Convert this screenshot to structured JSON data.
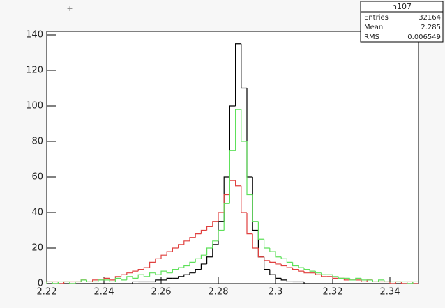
{
  "chart_data": {
    "type": "histogram",
    "bins": [
      2.22,
      2.222,
      2.224,
      2.226,
      2.228,
      2.23,
      2.232,
      2.234,
      2.236,
      2.238,
      2.24,
      2.242,
      2.244,
      2.246,
      2.248,
      2.25,
      2.252,
      2.254,
      2.256,
      2.258,
      2.26,
      2.262,
      2.264,
      2.266,
      2.268,
      2.27,
      2.272,
      2.274,
      2.276,
      2.278,
      2.28,
      2.282,
      2.284,
      2.286,
      2.288,
      2.29,
      2.292,
      2.294,
      2.296,
      2.298,
      2.3,
      2.302,
      2.304,
      2.306,
      2.308,
      2.31,
      2.312,
      2.314,
      2.316,
      2.318,
      2.32,
      2.322,
      2.324,
      2.326,
      2.328,
      2.33,
      2.332,
      2.334,
      2.336,
      2.338,
      2.34,
      2.342,
      2.344,
      2.346,
      2.348,
      2.35
    ],
    "series": [
      {
        "color": "#000000",
        "values": [
          0,
          0,
          0,
          0,
          0,
          0,
          0,
          0,
          0,
          0,
          0,
          0,
          0,
          0,
          0,
          1,
          1,
          1,
          1,
          2,
          2,
          3,
          3,
          4,
          5,
          6,
          8,
          11,
          15,
          22,
          35,
          60,
          100,
          135,
          110,
          60,
          30,
          15,
          8,
          5,
          3,
          2,
          1,
          1,
          1,
          0,
          0,
          0,
          0,
          0,
          0,
          0,
          0,
          0,
          0,
          0,
          0,
          0,
          0,
          0,
          0,
          0,
          0,
          0,
          0
        ]
      },
      {
        "color": "#e0403f",
        "values": [
          1,
          1,
          0,
          1,
          1,
          1,
          2,
          1,
          2,
          2,
          3,
          2,
          4,
          5,
          6,
          7,
          8,
          9,
          12,
          14,
          16,
          18,
          20,
          22,
          24,
          26,
          28,
          30,
          32,
          35,
          40,
          50,
          58,
          55,
          40,
          28,
          20,
          15,
          13,
          12,
          11,
          10,
          9,
          8,
          7,
          6,
          6,
          5,
          4,
          4,
          3,
          3,
          2,
          2,
          2,
          1,
          2,
          1,
          1,
          1,
          0,
          1,
          0,
          1,
          0
        ]
      },
      {
        "color": "#5ee05a",
        "values": [
          1,
          0,
          1,
          1,
          0,
          1,
          2,
          1,
          1,
          2,
          2,
          1,
          3,
          2,
          4,
          3,
          5,
          4,
          6,
          5,
          7,
          6,
          8,
          9,
          10,
          12,
          14,
          16,
          20,
          24,
          30,
          45,
          75,
          98,
          80,
          50,
          35,
          25,
          20,
          18,
          15,
          14,
          12,
          10,
          9,
          8,
          7,
          6,
          5,
          5,
          4,
          3,
          3,
          2,
          3,
          2,
          2,
          1,
          2,
          1,
          1,
          1,
          1,
          0,
          1
        ]
      }
    ],
    "xlim": [
      2.22,
      2.35
    ],
    "ylim": [
      0,
      140
    ],
    "xticks": [
      2.22,
      2.24,
      2.26,
      2.28,
      2.3,
      2.32,
      2.34
    ],
    "yticks": [
      0,
      20,
      40,
      60,
      80,
      100,
      120,
      140
    ],
    "stats": {
      "title": "h107",
      "rows": [
        {
          "label": "Entries",
          "value": 32164
        },
        {
          "label": "Mean",
          "value": 2.285
        },
        {
          "label": "RMS",
          "value": 0.006549
        }
      ]
    }
  }
}
